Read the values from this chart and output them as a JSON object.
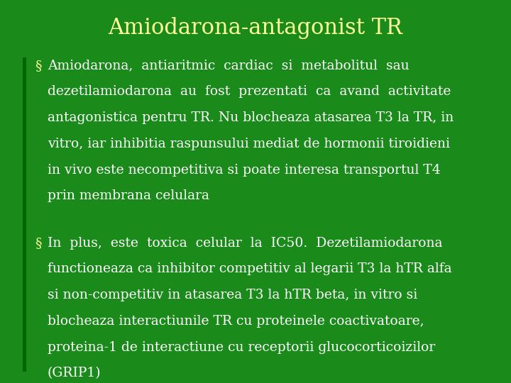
{
  "title": "Amiodarona-antagonist TR",
  "title_color": "#FFFF99",
  "title_fontsize": 22,
  "bg_color": "#1a8a1a",
  "text_color": "#FFFFFF",
  "bullet_color": "#FFFF99",
  "body_fontsize": 13.5,
  "bullet1_lines": [
    "Amiodarona,  antiaritmic  cardiac  si  metabolitul  sau",
    "dezetilamiodarona  au  fost  prezentati  ca  avand  activitate",
    "antagonistica pentru TR. Nu blocheaza atasarea T3 la TR, in",
    "vitro, iar inhibitia raspunsului mediat de hormonii tiroidieni",
    "in vivo este necompetitiva si poate interesa transportul T4",
    "prin membrana celulara"
  ],
  "bullet2_lines": [
    "In  plus,  este  toxica  celular  la  IC50.  Dezetilamiodarona",
    "functioneaza ca inhibitor competitiv al legarii T3 la hTR alfa",
    "si non-competitiv in atasarea T3 la hTR beta, in vitro si",
    "blocheaza interactiunile TR cu proteinele coactivatoare,",
    "proteina-1 de interactiune cu receptorii glucocorticoizilor",
    "(GRIP1)"
  ],
  "border_color": "#006600"
}
